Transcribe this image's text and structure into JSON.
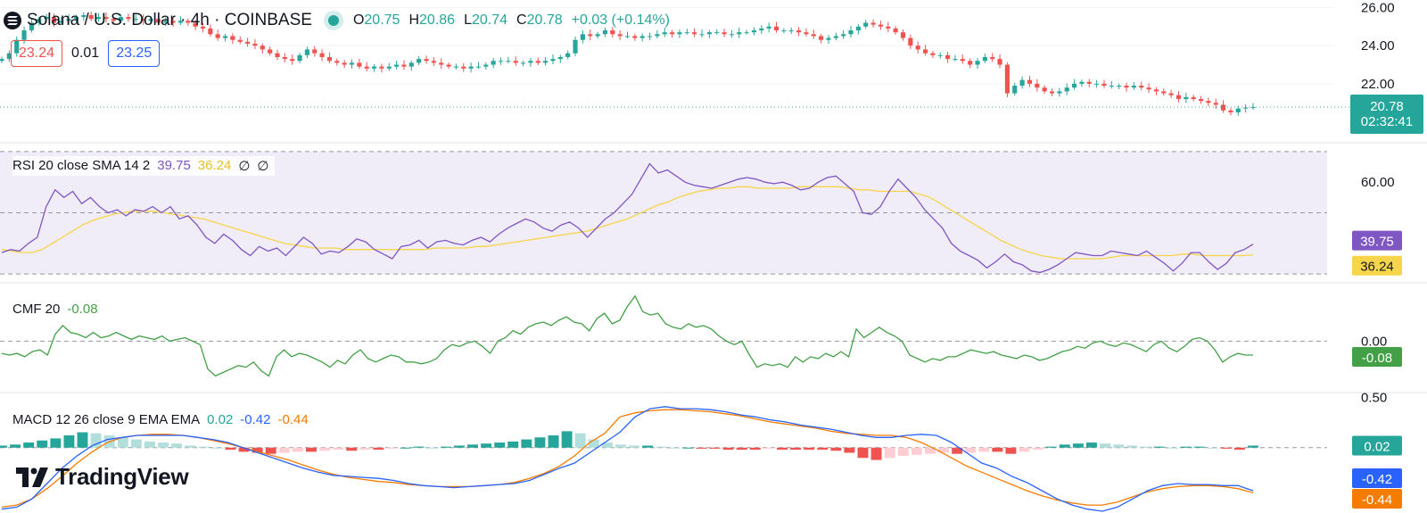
{
  "header": {
    "symbol": "Solana / U.S. Dollar · 4h · COINBASE",
    "open_label": "O",
    "open": "20.75",
    "high_label": "H",
    "high": "20.86",
    "low_label": "L",
    "low": "20.74",
    "close_label": "C",
    "close": "20.78",
    "change": "+0.03 (+0.14%)",
    "sell_price": "23.24",
    "spread": "0.01",
    "buy_price": "23.25"
  },
  "price_badge": {
    "price": "20.78",
    "countdown": "02:32:41"
  },
  "rsi_legend": {
    "name": "RSI 20 close SMA 14 2",
    "rsi": "39.75",
    "sma": "36.24",
    "extra1": "∅",
    "extra2": "∅"
  },
  "cmf_legend": {
    "name": "CMF 20",
    "value": "-0.08"
  },
  "macd_legend": {
    "name": "MACD 12 26 close 9 EMA EMA",
    "hist": "0.02",
    "macd": "-0.42",
    "signal": "-0.44"
  },
  "branding": {
    "logo_text": "TradingView"
  },
  "colors": {
    "up": "#26a69a",
    "down": "#ef5350",
    "rsi_line": "#7e57c2",
    "rsi_sma": "#f7d54a",
    "cmf_line": "#43a047",
    "macd_line": "#2962ff",
    "signal_line": "#f57c00",
    "hist_up_strong": "#26a69a",
    "hist_up_weak": "#b2dfdb",
    "hist_down_strong": "#ef5350",
    "hist_down_weak": "#ffcdd2",
    "rsi_band": "#f0ecf8"
  },
  "chart_data": [
    {
      "type": "candlestick",
      "title": "Solana / U.S. Dollar · 4h · COINBASE",
      "y_ticks": [
        26.0,
        24.0,
        22.0
      ],
      "last_price": 20.78,
      "ylim": [
        19.0,
        26.3
      ],
      "closes": [
        23.3,
        23.6,
        24.3,
        24.8,
        25.2,
        25.4,
        25.5,
        25.2,
        25.3,
        25.4,
        25.5,
        25.6,
        25.4,
        25.5,
        25.4,
        25.3,
        25.5,
        25.4,
        25.4,
        25.3,
        25.4,
        25.2,
        25.3,
        25.2,
        25.3,
        25.2,
        25.0,
        24.9,
        24.6,
        24.4,
        24.5,
        24.3,
        24.2,
        24.1,
        24.0,
        23.8,
        23.6,
        23.4,
        23.3,
        23.2,
        23.5,
        23.8,
        23.6,
        23.4,
        23.2,
        23.1,
        23.0,
        23.1,
        22.9,
        22.8,
        22.9,
        22.8,
        22.9,
        23.0,
        22.9,
        23.1,
        23.3,
        23.2,
        23.1,
        23.0,
        22.9,
        22.9,
        22.8,
        22.9,
        22.9,
        23.0,
        23.2,
        23.2,
        23.2,
        23.1,
        23.1,
        23.2,
        23.1,
        23.2,
        23.3,
        23.4,
        23.6,
        24.3,
        24.6,
        24.5,
        24.6,
        24.8,
        24.6,
        24.5,
        24.5,
        24.4,
        24.5,
        24.5,
        24.6,
        24.7,
        24.6,
        24.7,
        24.7,
        24.6,
        24.6,
        24.7,
        24.7,
        24.6,
        24.6,
        24.7,
        24.7,
        24.8,
        24.9,
        25.0,
        24.8,
        24.8,
        24.8,
        24.7,
        24.6,
        24.5,
        24.3,
        24.4,
        24.5,
        24.6,
        24.8,
        25.0,
        25.2,
        25.1,
        25.0,
        24.9,
        24.7,
        24.4,
        24.0,
        23.8,
        23.6,
        23.5,
        23.5,
        23.3,
        23.3,
        23.2,
        23.0,
        23.2,
        23.4,
        23.3,
        23.0,
        21.5,
        21.9,
        22.2,
        22.0,
        21.8,
        21.6,
        21.5,
        21.6,
        21.8,
        22.0,
        22.1,
        22.0,
        22.0,
        21.9,
        21.9,
        21.9,
        21.8,
        21.9,
        21.8,
        21.7,
        21.6,
        21.5,
        21.4,
        21.2,
        21.3,
        21.2,
        21.1,
        21.0,
        20.9,
        20.6,
        20.5,
        20.7,
        20.75,
        20.78
      ]
    },
    {
      "type": "line",
      "title": "RSI 20 close SMA 14 2",
      "y_ticks": [
        60.0
      ],
      "ylim": [
        28,
        72
      ],
      "band": [
        30,
        70
      ],
      "series": [
        {
          "name": "RSI",
          "values": [
            37.0,
            38.0,
            37.5,
            40.0,
            42.0,
            52.0,
            57.5,
            55.0,
            57.0,
            53.0,
            55.0,
            52.0,
            50.0,
            51.0,
            49.0,
            51.0,
            50.5,
            52.0,
            50.0,
            52.0,
            48.0,
            49.0,
            46.0,
            42.0,
            40.0,
            43.0,
            41.0,
            38.0,
            36.0,
            39.0,
            37.5,
            38.5,
            36.0,
            39.0,
            42.0,
            40.0,
            36.5,
            37.5,
            37.0,
            39.0,
            41.5,
            40.5,
            38.0,
            36.5,
            35.0,
            39.0,
            39.5,
            41.0,
            38.5,
            40.5,
            41.0,
            40.0,
            39.5,
            41.0,
            42.0,
            40.5,
            43.0,
            45.0,
            46.5,
            48.0,
            47.0,
            45.0,
            44.0,
            46.0,
            47.0,
            45.0,
            42.0,
            45.0,
            48.0,
            50.0,
            53.0,
            56.0,
            61.0,
            66.0,
            63.0,
            64.0,
            62.0,
            60.0,
            59.0,
            58.5,
            58.0,
            59.0,
            60.0,
            61.0,
            61.5,
            61.0,
            60.0,
            59.5,
            60.0,
            59.0,
            57.5,
            58.0,
            60.0,
            61.5,
            62.0,
            59.5,
            57.0,
            50.0,
            49.5,
            52.0,
            57.0,
            61.0,
            58.0,
            55.0,
            51.0,
            48.0,
            45.0,
            40.0,
            37.5,
            36.0,
            34.5,
            32.0,
            34.0,
            36.5,
            34.0,
            33.0,
            31.0,
            30.5,
            31.5,
            33.0,
            35.0,
            37.0,
            36.5,
            36.0,
            36.0,
            37.5,
            37.0,
            36.5,
            36.0,
            37.5,
            35.5,
            33.5,
            31.0,
            33.5,
            37.0,
            37.0,
            34.0,
            31.5,
            33.5,
            37.0,
            38.0,
            39.75
          ]
        },
        {
          "name": "SMA",
          "values": [
            38.0,
            37.5,
            37.0,
            37.0,
            38.0,
            40.0,
            42.0,
            44.0,
            46.0,
            47.5,
            48.5,
            49.5,
            50.0,
            50.5,
            50.5,
            50.5,
            50.0,
            49.5,
            49.0,
            48.5,
            48.0,
            47.0,
            46.0,
            45.0,
            44.0,
            43.0,
            42.0,
            41.0,
            40.0,
            39.5,
            39.0,
            38.5,
            38.5,
            38.5,
            38.0,
            38.0,
            38.0,
            38.0,
            38.0,
            38.0,
            38.0,
            38.0,
            38.0,
            38.5,
            38.5,
            38.5,
            38.5,
            39.0,
            39.0,
            39.5,
            40.0,
            40.5,
            41.0,
            41.5,
            42.0,
            42.5,
            43.0,
            43.5,
            44.0,
            45.0,
            46.0,
            47.0,
            48.0,
            49.5,
            51.0,
            52.5,
            53.5,
            55.0,
            56.0,
            57.0,
            57.5,
            58.0,
            58.0,
            58.5,
            58.5,
            58.0,
            58.0,
            58.0,
            58.0,
            58.5,
            58.5,
            58.5,
            58.5,
            58.5,
            58.0,
            57.5,
            57.5,
            57.0,
            57.0,
            57.0,
            57.0,
            56.0,
            55.0,
            53.0,
            51.0,
            49.0,
            47.0,
            45.0,
            43.0,
            41.0,
            39.5,
            38.0,
            37.0,
            36.0,
            35.5,
            35.0,
            35.0,
            35.0,
            35.0,
            35.0,
            35.5,
            36.0,
            36.0,
            36.0,
            36.0,
            36.0,
            36.0,
            36.5,
            36.5,
            36.0,
            36.0,
            36.0,
            36.0,
            36.0,
            36.24
          ]
        }
      ],
      "last": {
        "rsi": 39.75,
        "sma": 36.24
      }
    },
    {
      "type": "line",
      "title": "CMF 20",
      "y_ticks": [
        0.0
      ],
      "ylim": [
        -0.28,
        0.32
      ],
      "series": [
        {
          "name": "CMF",
          "values": [
            -0.07,
            -0.08,
            -0.07,
            -0.09,
            -0.06,
            -0.05,
            -0.08,
            0.04,
            0.09,
            0.05,
            0.04,
            0.02,
            0.05,
            0.02,
            0.03,
            0.05,
            0.03,
            0.01,
            0.03,
            0.02,
            0.01,
            0.03,
            0.0,
            0.01,
            0.02,
            0.0,
            -0.02,
            -0.16,
            -0.2,
            -0.18,
            -0.16,
            -0.14,
            -0.15,
            -0.12,
            -0.17,
            -0.2,
            -0.09,
            -0.05,
            -0.09,
            -0.07,
            -0.08,
            -0.1,
            -0.12,
            -0.15,
            -0.11,
            -0.13,
            -0.08,
            -0.05,
            -0.1,
            -0.12,
            -0.1,
            -0.08,
            -0.09,
            -0.12,
            -0.12,
            -0.13,
            -0.12,
            -0.1,
            -0.05,
            -0.02,
            -0.03,
            -0.01,
            0.0,
            -0.03,
            -0.07,
            0.0,
            0.02,
            0.06,
            0.04,
            0.08,
            0.1,
            0.11,
            0.09,
            0.12,
            0.14,
            0.11,
            0.1,
            0.06,
            0.13,
            0.16,
            0.1,
            0.12,
            0.2,
            0.26,
            0.17,
            0.15,
            0.16,
            0.1,
            0.08,
            0.07,
            0.1,
            0.08,
            0.09,
            0.07,
            0.03,
            0.0,
            -0.02,
            0.0,
            -0.08,
            -0.15,
            -0.13,
            -0.14,
            -0.13,
            -0.15,
            -0.09,
            -0.12,
            -0.09,
            -0.1,
            -0.07,
            -0.09,
            -0.06,
            -0.09,
            0.07,
            0.02,
            0.05,
            0.08,
            0.05,
            0.03,
            0.0,
            -0.08,
            -0.1,
            -0.12,
            -0.1,
            -0.11,
            -0.09,
            -0.09,
            -0.07,
            -0.05,
            -0.06,
            -0.07,
            -0.06,
            -0.08,
            -0.09,
            -0.1,
            -0.08,
            -0.09,
            -0.11,
            -0.1,
            -0.08,
            -0.06,
            -0.05,
            -0.03,
            -0.04,
            -0.01,
            0.0,
            -0.02,
            -0.03,
            -0.01,
            -0.02,
            -0.04,
            -0.06,
            -0.02,
            0.0,
            -0.04,
            -0.06,
            -0.03,
            0.01,
            0.02,
            0.0,
            -0.05,
            -0.12,
            -0.09,
            -0.07,
            -0.08,
            -0.08
          ]
        }
      ],
      "last": -0.08
    },
    {
      "type": "line",
      "title": "MACD 12 26 close 9 EMA EMA",
      "y_ticks": [
        0.5
      ],
      "ylim": [
        -0.62,
        0.52
      ],
      "series": [
        {
          "name": "MACD",
          "values": [
            -0.6,
            -0.58,
            -0.5,
            -0.35,
            -0.2,
            -0.08,
            0.02,
            0.08,
            0.1,
            0.12,
            0.12,
            0.12,
            0.12,
            0.1,
            0.08,
            0.05,
            0.0,
            -0.05,
            -0.1,
            -0.15,
            -0.2,
            -0.24,
            -0.27,
            -0.28,
            -0.29,
            -0.3,
            -0.32,
            -0.35,
            -0.37,
            -0.38,
            -0.39,
            -0.38,
            -0.37,
            -0.36,
            -0.35,
            -0.32,
            -0.26,
            -0.2,
            -0.15,
            -0.05,
            0.05,
            0.15,
            0.3,
            0.38,
            0.4,
            0.38,
            0.38,
            0.37,
            0.35,
            0.32,
            0.3,
            0.27,
            0.25,
            0.22,
            0.2,
            0.18,
            0.15,
            0.12,
            0.1,
            0.1,
            0.12,
            0.13,
            0.12,
            0.05,
            -0.05,
            -0.15,
            -0.2,
            -0.28,
            -0.34,
            -0.42,
            -0.5,
            -0.56,
            -0.6,
            -0.62,
            -0.58,
            -0.5,
            -0.42,
            -0.37,
            -0.35,
            -0.36,
            -0.36,
            -0.37,
            -0.37,
            -0.42
          ]
        },
        {
          "name": "Signal",
          "values": [
            -0.58,
            -0.56,
            -0.5,
            -0.4,
            -0.28,
            -0.15,
            -0.04,
            0.05,
            0.1,
            0.12,
            0.13,
            0.13,
            0.12,
            0.1,
            0.07,
            0.04,
            0.0,
            -0.04,
            -0.08,
            -0.12,
            -0.17,
            -0.22,
            -0.26,
            -0.29,
            -0.31,
            -0.33,
            -0.34,
            -0.36,
            -0.37,
            -0.38,
            -0.38,
            -0.38,
            -0.37,
            -0.36,
            -0.34,
            -0.3,
            -0.25,
            -0.18,
            -0.08,
            0.05,
            0.14,
            0.3,
            0.34,
            0.36,
            0.37,
            0.37,
            0.36,
            0.35,
            0.33,
            0.31,
            0.28,
            0.25,
            0.23,
            0.21,
            0.19,
            0.16,
            0.14,
            0.13,
            0.12,
            0.12,
            0.1,
            0.05,
            -0.02,
            -0.1,
            -0.18,
            -0.24,
            -0.3,
            -0.36,
            -0.42,
            -0.47,
            -0.51,
            -0.54,
            -0.56,
            -0.56,
            -0.53,
            -0.48,
            -0.43,
            -0.4,
            -0.38,
            -0.37,
            -0.37,
            -0.38,
            -0.4,
            -0.44
          ]
        },
        {
          "name": "Histogram",
          "values": [
            0.02,
            0.03,
            0.05,
            0.07,
            0.09,
            0.12,
            0.15,
            0.14,
            0.12,
            0.1,
            0.08,
            0.06,
            0.05,
            0.04,
            0.02,
            0.01,
            0.0,
            -0.02,
            -0.04,
            -0.05,
            -0.06,
            -0.05,
            -0.04,
            -0.04,
            -0.03,
            -0.02,
            -0.03,
            -0.02,
            -0.02,
            -0.01,
            0.0,
            0.01,
            0.0,
            0.01,
            0.02,
            0.03,
            0.04,
            0.05,
            0.06,
            0.08,
            0.1,
            0.12,
            0.16,
            0.14,
            0.08,
            0.05,
            0.03,
            0.02,
            0.02,
            0.01,
            0.0,
            0.0,
            -0.01,
            -0.01,
            -0.02,
            -0.02,
            -0.02,
            -0.01,
            -0.02,
            -0.02,
            -0.02,
            -0.02,
            -0.03,
            -0.05,
            -0.1,
            -0.12,
            -0.1,
            -0.08,
            -0.07,
            -0.06,
            -0.05,
            -0.06,
            -0.05,
            -0.04,
            -0.04,
            -0.06,
            -0.04,
            -0.02,
            0.01,
            0.03,
            0.04,
            0.05,
            0.04,
            0.03,
            0.02,
            0.01,
            0.01,
            0.0,
            0.01,
            0.01,
            0.0,
            -0.01,
            -0.02,
            0.02
          ]
        }
      ],
      "last": {
        "macd": -0.42,
        "signal": -0.44,
        "hist": 0.02
      }
    }
  ]
}
